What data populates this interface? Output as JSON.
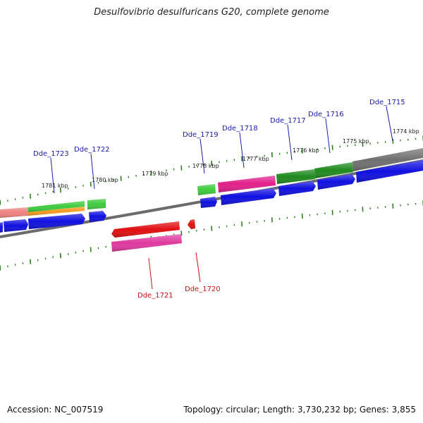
{
  "title": "Desulfovibrio desulfuricans G20, complete genome",
  "accession": "Accession: NC_007519",
  "summary": "Topology: circular; Length: 3,730,232 bp; Genes: 3,855",
  "colors": {
    "backbone": "#6b6b6b",
    "tick": "#2e7d1e",
    "label_forward": "#1a1aaa",
    "label_reverse": "#cc1111",
    "blue": "#1010e0",
    "green_light": "#3ecb3e",
    "green_dark": "#1f8a1f",
    "magenta": "#e0208a",
    "pink": "#e03aa0",
    "red": "#e01010",
    "orange": "#f59a1e",
    "salmon": "#f08080",
    "gray": "#707070"
  },
  "kbp_labels": [
    {
      "text": "1781 kbp"
    },
    {
      "text": "1780 kbp"
    },
    {
      "text": "1779 kbp"
    },
    {
      "text": "1778 kbp"
    },
    {
      "text": "1777 kbp"
    },
    {
      "text": "1776 kbp"
    },
    {
      "text": "1775 kbp"
    },
    {
      "text": "1774 kbp"
    }
  ],
  "gene_labels": [
    {
      "text": "Dde_1723",
      "strand": "forward"
    },
    {
      "text": "Dde_1722",
      "strand": "forward"
    },
    {
      "text": "Dde_1719",
      "strand": "forward"
    },
    {
      "text": "Dde_1718",
      "strand": "forward"
    },
    {
      "text": "Dde_1717",
      "strand": "forward"
    },
    {
      "text": "Dde_1716",
      "strand": "forward"
    },
    {
      "text": "Dde_1715",
      "strand": "forward"
    },
    {
      "text": "Dde_1721",
      "strand": "reverse"
    },
    {
      "text": "Dde_1720",
      "strand": "reverse"
    }
  ]
}
